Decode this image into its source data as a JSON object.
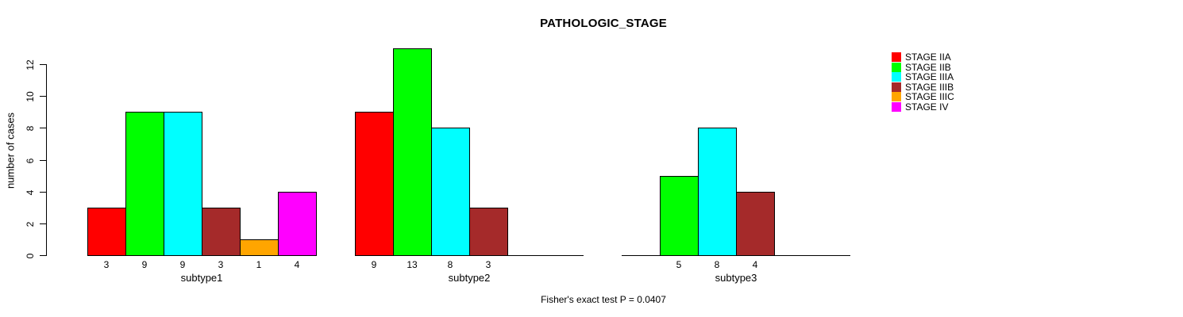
{
  "chart_data": {
    "type": "bar",
    "title": "PATHOLOGIC_STAGE",
    "ylabel": "number of cases",
    "xlabel": "",
    "footnote": "Fisher's exact test P = 0.0407",
    "categories": [
      "subtype1",
      "subtype2",
      "subtype3"
    ],
    "series": [
      {
        "name": "STAGE IIA",
        "color": "#FF0000",
        "values": [
          3,
          9,
          0
        ]
      },
      {
        "name": "STAGE IIB",
        "color": "#00FF00",
        "values": [
          9,
          13,
          5
        ]
      },
      {
        "name": "STAGE IIIA",
        "color": "#00FFFF",
        "values": [
          9,
          8,
          8
        ]
      },
      {
        "name": "STAGE IIIB",
        "color": "#A52A2A",
        "values": [
          3,
          3,
          4
        ]
      },
      {
        "name": "STAGE IIIC",
        "color": "#FFA500",
        "values": [
          1,
          0,
          0
        ]
      },
      {
        "name": "STAGE IV",
        "color": "#FF00FF",
        "values": [
          4,
          0,
          0
        ]
      }
    ],
    "yticks": [
      0,
      2,
      4,
      6,
      8,
      10,
      12
    ],
    "ylim": [
      0,
      12
    ],
    "bar_value_labels": true,
    "legend_position": "right",
    "grid": false,
    "axis_color": "#000000",
    "background_color": "#FFFFFF"
  }
}
